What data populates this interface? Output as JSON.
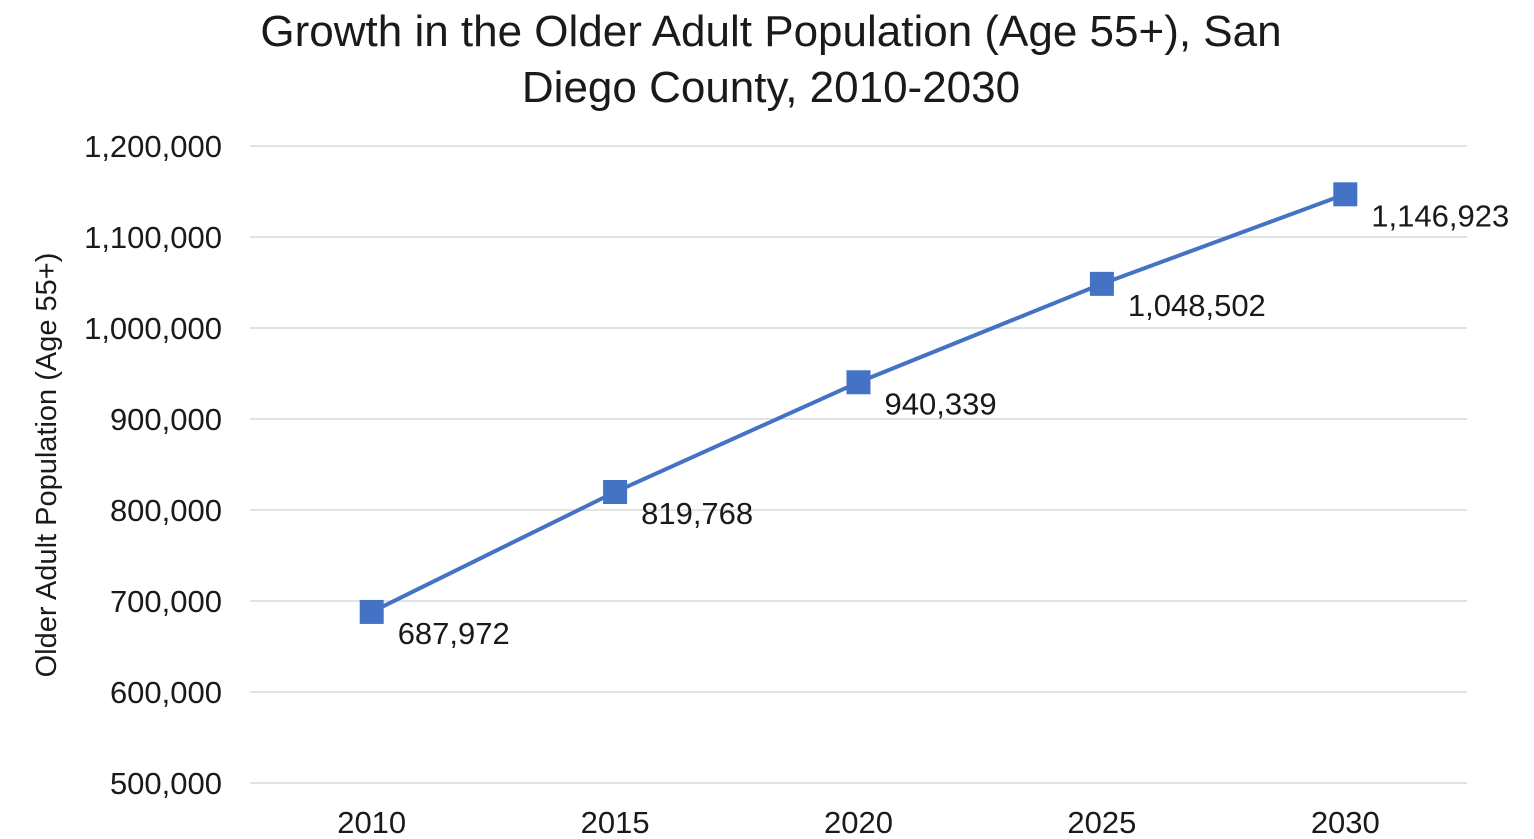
{
  "chart_data": {
    "type": "line",
    "title_lines": [
      "Growth in the Older Adult Population (Age 55+), San",
      "Diego County, 2010-2030"
    ],
    "xlabel": "",
    "ylabel": "Older Adult Population (Age 55+)",
    "categories": [
      "2010",
      "2015",
      "2020",
      "2025",
      "2030"
    ],
    "series": [
      {
        "values": [
          687972,
          819768,
          940339,
          1048502,
          1146923
        ],
        "data_labels": [
          "687,972",
          "819,768",
          "940,339",
          "1,048,502",
          "1,146,923"
        ],
        "color": "#4472c4",
        "marker": "square"
      }
    ],
    "ylim": [
      500000,
      1200000
    ],
    "yticks": [
      500000,
      600000,
      700000,
      800000,
      900000,
      1000000,
      1100000,
      1200000
    ],
    "ytick_labels": [
      "500,000",
      "600,000",
      "700,000",
      "800,000",
      "900,000",
      "1,000,000",
      "1,100,000",
      "1,200,000"
    ],
    "grid": "horizontal",
    "legend": "none"
  }
}
